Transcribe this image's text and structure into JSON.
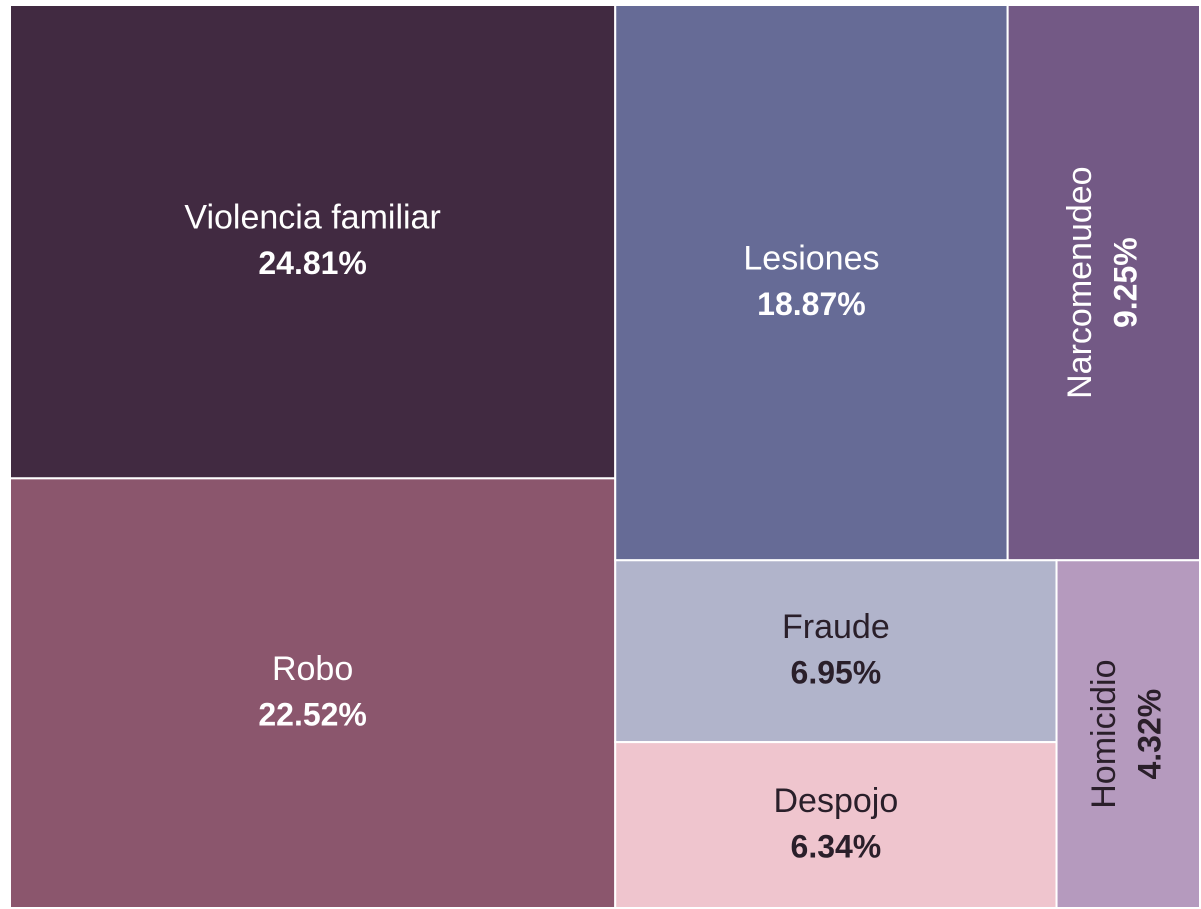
{
  "chart_data": {
    "type": "treemap",
    "categories": [
      "Violencia familiar",
      "Robo",
      "Lesiones",
      "Narcomenudeo",
      "Fraude",
      "Despojo",
      "Homicidio"
    ],
    "values": [
      24.81,
      22.52,
      18.87,
      9.25,
      6.95,
      6.34,
      4.32
    ],
    "value_labels": [
      "24.81%",
      "22.52%",
      "18.87%",
      "9.25%",
      "6.95%",
      "6.34%",
      "4.32%"
    ],
    "colors": [
      "#412a41",
      "#8b566d",
      "#666b96",
      "#735985",
      "#b1b4cb",
      "#efc5ce",
      "#b59abe"
    ]
  }
}
